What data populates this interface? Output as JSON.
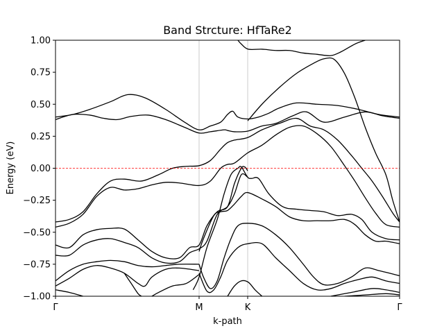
{
  "chart_data": {
    "type": "line",
    "title": "Band Strcture: HfTaRe2",
    "xlabel": "k-path",
    "ylabel": "Energy (eV)",
    "xlim": [
      0,
      1
    ],
    "ylim": [
      -1.0,
      1.0
    ],
    "yticks": [
      -1.0,
      -0.75,
      -0.5,
      -0.25,
      0.0,
      0.25,
      0.5,
      0.75,
      1.0
    ],
    "ytick_labels": [
      "−1.00",
      "−0.75",
      "−0.50",
      "−0.25",
      "0.00",
      "0.25",
      "0.50",
      "0.75",
      "1.00"
    ],
    "high_symmetry_points": [
      {
        "label": "Γ",
        "x": 0.0
      },
      {
        "label": "M",
        "x": 0.4173
      },
      {
        "label": "K",
        "x": 0.5585
      },
      {
        "label": "Γ",
        "x": 1.0
      }
    ],
    "fermi_level": 0.0,
    "colors": {
      "bands": "#000000",
      "fermi": "#ff0000",
      "vlines": "#cccccc"
    },
    "series": [
      {
        "values": [
          [
            0,
            0.4
          ],
          [
            0.05,
            0.42
          ],
          [
            0.1,
            0.46
          ],
          [
            0.16,
            0.52
          ],
          [
            0.21,
            0.575
          ],
          [
            0.26,
            0.55
          ],
          [
            0.32,
            0.46
          ],
          [
            0.375,
            0.36
          ],
          [
            0.4173,
            0.3
          ],
          [
            0.45,
            0.33
          ],
          [
            0.48,
            0.36
          ],
          [
            0.5,
            0.42
          ],
          [
            0.515,
            0.445
          ],
          [
            0.53,
            0.4
          ],
          [
            0.5585,
            0.385
          ],
          [
            0.59,
            0.4
          ],
          [
            0.62,
            0.43
          ],
          [
            0.65,
            0.47
          ],
          [
            0.7,
            0.51
          ],
          [
            0.76,
            0.5
          ],
          [
            0.82,
            0.49
          ],
          [
            0.88,
            0.46
          ],
          [
            0.94,
            0.42
          ],
          [
            1,
            0.4
          ]
        ]
      },
      {
        "values": [
          [
            0,
            0.38
          ],
          [
            0.05,
            0.42
          ],
          [
            0.1,
            0.415
          ],
          [
            0.14,
            0.39
          ],
          [
            0.18,
            0.38
          ],
          [
            0.22,
            0.405
          ],
          [
            0.27,
            0.415
          ],
          [
            0.32,
            0.38
          ],
          [
            0.375,
            0.32
          ],
          [
            0.4173,
            0.275
          ],
          [
            0.45,
            0.285
          ],
          [
            0.49,
            0.3
          ],
          [
            0.5,
            0.295
          ],
          [
            0.52,
            0.285
          ],
          [
            0.5585,
            0.29
          ],
          [
            0.6,
            0.33
          ],
          [
            0.64,
            0.35
          ],
          [
            0.69,
            0.41
          ],
          [
            0.73,
            0.44
          ],
          [
            0.78,
            0.36
          ],
          [
            0.84,
            0.4
          ],
          [
            0.9,
            0.44
          ],
          [
            0.95,
            0.41
          ],
          [
            1,
            0.39
          ]
        ]
      },
      {
        "values": [
          [
            0.53,
            1.0
          ],
          [
            0.54,
            0.97
          ],
          [
            0.56,
            0.93
          ],
          [
            0.6,
            0.93
          ],
          [
            0.64,
            0.92
          ],
          [
            0.68,
            0.92
          ],
          [
            0.72,
            0.9
          ],
          [
            0.76,
            0.89
          ],
          [
            0.8,
            0.88
          ],
          [
            0.83,
            0.91
          ],
          [
            0.87,
            0.97
          ],
          [
            0.9,
            1.0
          ]
        ]
      },
      {
        "values": [
          [
            0.5585,
            0.37
          ],
          [
            0.6,
            0.5
          ],
          [
            0.65,
            0.63
          ],
          [
            0.7,
            0.74
          ],
          [
            0.75,
            0.82
          ],
          [
            0.78,
            0.855
          ],
          [
            0.81,
            0.85
          ],
          [
            0.84,
            0.74
          ],
          [
            0.87,
            0.55
          ],
          [
            0.9,
            0.32
          ],
          [
            0.93,
            0.12
          ],
          [
            0.96,
            -0.05
          ],
          [
            0.98,
            -0.25
          ],
          [
            1,
            -0.42
          ]
        ]
      },
      {
        "values": [
          [
            0,
            -0.42
          ],
          [
            0.04,
            -0.4
          ],
          [
            0.08,
            -0.34
          ],
          [
            0.12,
            -0.2
          ],
          [
            0.16,
            -0.1
          ],
          [
            0.2,
            -0.085
          ],
          [
            0.25,
            -0.1
          ],
          [
            0.3,
            -0.05
          ],
          [
            0.34,
            0.0
          ],
          [
            0.38,
            0.015
          ],
          [
            0.4173,
            0.02
          ],
          [
            0.45,
            0.06
          ],
          [
            0.48,
            0.15
          ],
          [
            0.5,
            0.2
          ],
          [
            0.52,
            0.22
          ],
          [
            0.5585,
            0.24
          ],
          [
            0.6,
            0.3
          ],
          [
            0.65,
            0.35
          ],
          [
            0.7,
            0.39
          ],
          [
            0.74,
            0.33
          ],
          [
            0.78,
            0.3
          ],
          [
            0.82,
            0.22
          ],
          [
            0.86,
            0.1
          ],
          [
            0.89,
            0.0
          ],
          [
            0.92,
            -0.1
          ],
          [
            0.95,
            -0.22
          ],
          [
            0.98,
            -0.35
          ],
          [
            1,
            -0.42
          ]
        ]
      },
      {
        "values": [
          [
            0,
            -0.46
          ],
          [
            0.04,
            -0.43
          ],
          [
            0.08,
            -0.36
          ],
          [
            0.12,
            -0.22
          ],
          [
            0.16,
            -0.15
          ],
          [
            0.2,
            -0.17
          ],
          [
            0.24,
            -0.16
          ],
          [
            0.28,
            -0.13
          ],
          [
            0.32,
            -0.11
          ],
          [
            0.36,
            -0.115
          ],
          [
            0.4173,
            -0.135
          ],
          [
            0.45,
            -0.1
          ],
          [
            0.48,
            0.0
          ],
          [
            0.5,
            0.03
          ],
          [
            0.52,
            0.04
          ],
          [
            0.5585,
            0.12
          ],
          [
            0.6,
            0.18
          ],
          [
            0.64,
            0.26
          ],
          [
            0.68,
            0.32
          ],
          [
            0.72,
            0.33
          ],
          [
            0.76,
            0.27
          ],
          [
            0.8,
            0.17
          ],
          [
            0.84,
            0.02
          ],
          [
            0.87,
            -0.1
          ],
          [
            0.9,
            -0.23
          ],
          [
            0.93,
            -0.35
          ],
          [
            0.96,
            -0.44
          ],
          [
            1,
            -0.46
          ]
        ]
      },
      {
        "values": [
          [
            0.4173,
            -0.65
          ],
          [
            0.43,
            -0.55
          ],
          [
            0.46,
            -0.37
          ],
          [
            0.48,
            -0.34
          ],
          [
            0.5,
            -0.33
          ],
          [
            0.52,
            -0.28
          ],
          [
            0.54,
            -0.22
          ],
          [
            0.5585,
            -0.19
          ],
          [
            0.6,
            -0.24
          ],
          [
            0.64,
            -0.3
          ],
          [
            0.68,
            -0.38
          ],
          [
            0.72,
            -0.41
          ],
          [
            0.76,
            -0.41
          ],
          [
            0.8,
            -0.41
          ],
          [
            0.84,
            -0.4
          ],
          [
            0.87,
            -0.44
          ],
          [
            0.9,
            -0.52
          ],
          [
            0.93,
            -0.57
          ],
          [
            0.96,
            -0.57
          ],
          [
            1,
            -0.59
          ]
        ]
      },
      {
        "values": [
          [
            0.4,
            -0.95
          ],
          [
            0.4173,
            -0.85
          ],
          [
            0.44,
            -0.62
          ],
          [
            0.47,
            -0.4
          ],
          [
            0.49,
            -0.2
          ],
          [
            0.51,
            -0.05
          ],
          [
            0.53,
            0.0
          ],
          [
            0.54,
            0.01
          ],
          [
            0.5585,
            -0.07
          ],
          [
            0.57,
            -0.08
          ],
          [
            0.59,
            -0.08
          ],
          [
            0.62,
            -0.2
          ],
          [
            0.66,
            -0.3
          ],
          [
            0.7,
            -0.32
          ],
          [
            0.74,
            -0.33
          ],
          [
            0.78,
            -0.34
          ],
          [
            0.82,
            -0.37
          ],
          [
            0.86,
            -0.36
          ],
          [
            0.89,
            -0.4
          ],
          [
            0.92,
            -0.5
          ],
          [
            0.96,
            -0.55
          ],
          [
            1,
            -0.56
          ]
        ]
      },
      {
        "values": [
          [
            0,
            -0.6
          ],
          [
            0.04,
            -0.62
          ],
          [
            0.08,
            -0.52
          ],
          [
            0.12,
            -0.48
          ],
          [
            0.16,
            -0.47
          ],
          [
            0.2,
            -0.475
          ],
          [
            0.24,
            -0.56
          ],
          [
            0.28,
            -0.65
          ],
          [
            0.32,
            -0.7
          ],
          [
            0.36,
            -0.7
          ],
          [
            0.39,
            -0.62
          ],
          [
            0.4173,
            -0.6
          ],
          [
            0.44,
            -0.45
          ],
          [
            0.47,
            -0.34
          ],
          [
            0.5,
            -0.3
          ],
          [
            0.52,
            -0.12
          ],
          [
            0.54,
            0.0
          ],
          [
            0.55,
            0.01
          ],
          [
            0.5585,
            -0.02
          ]
        ]
      },
      {
        "values": [
          [
            0,
            -0.68
          ],
          [
            0.04,
            -0.68
          ],
          [
            0.08,
            -0.6
          ],
          [
            0.12,
            -0.56
          ],
          [
            0.16,
            -0.55
          ],
          [
            0.2,
            -0.58
          ],
          [
            0.24,
            -0.62
          ],
          [
            0.28,
            -0.7
          ],
          [
            0.32,
            -0.74
          ],
          [
            0.36,
            -0.73
          ],
          [
            0.39,
            -0.66
          ],
          [
            0.4173,
            -0.63
          ],
          [
            0.44,
            -0.57
          ],
          [
            0.47,
            -0.36
          ],
          [
            0.5,
            -0.3
          ],
          [
            0.52,
            -0.2
          ],
          [
            0.54,
            -0.05
          ],
          [
            0.5585,
            -0.07
          ]
        ]
      },
      {
        "values": [
          [
            0.4173,
            -0.75
          ],
          [
            0.43,
            -0.85
          ],
          [
            0.45,
            -0.94
          ],
          [
            0.47,
            -0.88
          ],
          [
            0.49,
            -0.7
          ],
          [
            0.51,
            -0.55
          ],
          [
            0.53,
            -0.45
          ],
          [
            0.5585,
            -0.43
          ],
          [
            0.6,
            -0.45
          ],
          [
            0.64,
            -0.52
          ],
          [
            0.68,
            -0.62
          ],
          [
            0.72,
            -0.75
          ],
          [
            0.75,
            -0.85
          ],
          [
            0.78,
            -0.91
          ],
          [
            0.82,
            -0.9
          ],
          [
            0.86,
            -0.85
          ],
          [
            0.9,
            -0.78
          ],
          [
            0.94,
            -0.8
          ],
          [
            1,
            -0.84
          ]
        ]
      },
      {
        "values": [
          [
            0.4173,
            -0.82
          ],
          [
            0.44,
            -0.96
          ],
          [
            0.46,
            -0.95
          ],
          [
            0.48,
            -0.85
          ],
          [
            0.5,
            -0.72
          ],
          [
            0.53,
            -0.62
          ],
          [
            0.5585,
            -0.59
          ],
          [
            0.6,
            -0.59
          ],
          [
            0.64,
            -0.7
          ],
          [
            0.68,
            -0.8
          ],
          [
            0.72,
            -0.9
          ],
          [
            0.76,
            -0.95
          ],
          [
            0.8,
            -0.94
          ],
          [
            0.84,
            -0.9
          ],
          [
            0.88,
            -0.87
          ],
          [
            0.92,
            -0.85
          ],
          [
            0.96,
            -0.88
          ],
          [
            1,
            -0.9
          ]
        ]
      },
      {
        "values": [
          [
            0,
            -0.88
          ],
          [
            0.04,
            -0.8
          ],
          [
            0.08,
            -0.75
          ],
          [
            0.12,
            -0.73
          ],
          [
            0.16,
            -0.72
          ],
          [
            0.2,
            -0.73
          ],
          [
            0.24,
            -0.76
          ],
          [
            0.28,
            -0.77
          ],
          [
            0.32,
            -0.76
          ],
          [
            0.36,
            -0.75
          ],
          [
            0.4173,
            -0.75
          ]
        ]
      },
      {
        "values": [
          [
            0,
            -0.92
          ],
          [
            0.04,
            -0.86
          ],
          [
            0.08,
            -0.79
          ],
          [
            0.12,
            -0.76
          ],
          [
            0.16,
            -0.78
          ],
          [
            0.2,
            -0.82
          ],
          [
            0.24,
            -0.9
          ],
          [
            0.26,
            -0.92
          ],
          [
            0.28,
            -0.85
          ],
          [
            0.32,
            -0.79
          ],
          [
            0.36,
            -0.78
          ],
          [
            0.4173,
            -0.8
          ]
        ]
      },
      {
        "values": [
          [
            0,
            -0.95
          ],
          [
            0.04,
            -0.97
          ],
          [
            0.08,
            -1.0
          ]
        ]
      },
      {
        "values": [
          [
            0.2,
            -0.82
          ],
          [
            0.22,
            -0.9
          ],
          [
            0.24,
            -0.98
          ],
          [
            0.25,
            -1.0
          ]
        ]
      },
      {
        "values": [
          [
            0.28,
            -1.0
          ],
          [
            0.3,
            -0.97
          ],
          [
            0.34,
            -0.92
          ],
          [
            0.38,
            -0.9
          ],
          [
            0.4173,
            -0.83
          ]
        ]
      },
      {
        "values": [
          [
            0.5,
            -1.0
          ],
          [
            0.52,
            -0.92
          ],
          [
            0.54,
            -0.88
          ],
          [
            0.56,
            -0.89
          ],
          [
            0.58,
            -0.95
          ],
          [
            0.6,
            -1.0
          ]
        ]
      },
      {
        "values": [
          [
            0.8,
            -1.0
          ],
          [
            0.86,
            -0.97
          ],
          [
            0.92,
            -0.94
          ],
          [
            0.96,
            -0.95
          ],
          [
            1,
            -0.97
          ]
        ]
      },
      {
        "values": [
          [
            0.84,
            -1.0
          ],
          [
            0.9,
            -0.99
          ],
          [
            0.96,
            -0.98
          ],
          [
            1,
            -0.99
          ]
        ]
      }
    ]
  }
}
